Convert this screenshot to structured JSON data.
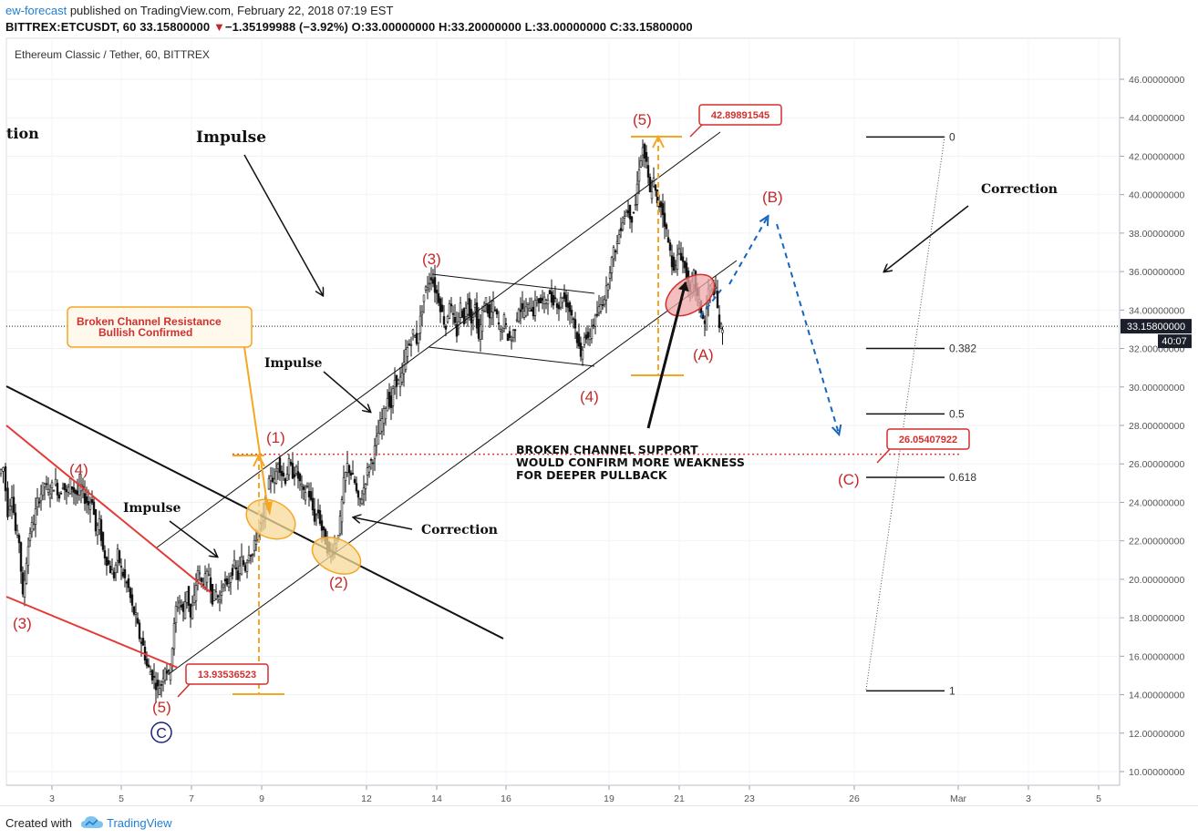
{
  "header": {
    "author": "ew-forecast",
    "published": " published on TradingView.com, February 22, 2018 07:19 EST",
    "symbol_line": "BITTREX:ETCUSDT, 60",
    "last": "33.15800000",
    "change_icon": "down-triangle-icon",
    "change": "−1.35199988 (−3.92%)",
    "ohlc": "O:33.00000000 H:33.20000000 L:33.00000000 C:33.15800000"
  },
  "chart_title": "Ethereum Classic / Tether, 60, BITTREX",
  "price_badge": "33.15800000",
  "countdown": "40:07",
  "footer": {
    "created": "Created with",
    "brand": "TradingView",
    "brand_icon": "tradingview-cloud-icon"
  },
  "colors": {
    "red": "#d32f2f",
    "orange": "#f5a623",
    "blue": "#1565c0",
    "grid": "#eef1f5"
  },
  "chart_data": {
    "type": "candlestick",
    "y_axis": {
      "min": 10,
      "max": 46,
      "step": 2,
      "decimals": 8
    },
    "x_ticks": [
      "3",
      "5",
      "7",
      "9",
      "12",
      "14",
      "16",
      "19",
      "21",
      "23",
      "26",
      "Mar",
      "3",
      "5"
    ],
    "path_points": [
      [
        0,
        25.5
      ],
      [
        5,
        25.8
      ],
      [
        10,
        23.5
      ],
      [
        14,
        24.5
      ],
      [
        18,
        22.5
      ],
      [
        22,
        22
      ],
      [
        26,
        19
      ],
      [
        30,
        21
      ],
      [
        34,
        22.5
      ],
      [
        38,
        23
      ],
      [
        42,
        24
      ],
      [
        46,
        24.5
      ],
      [
        50,
        25
      ],
      [
        54,
        24.5
      ],
      [
        58,
        24.8
      ],
      [
        62,
        25
      ],
      [
        66,
        24.3
      ],
      [
        70,
        25
      ],
      [
        74,
        24.4
      ],
      [
        78,
        25
      ],
      [
        82,
        24.6
      ],
      [
        86,
        24.4
      ],
      [
        90,
        24.8
      ],
      [
        94,
        24.2
      ],
      [
        98,
        23.9
      ],
      [
        102,
        24.2
      ],
      [
        106,
        22.5
      ],
      [
        110,
        22.9
      ],
      [
        114,
        21.5
      ],
      [
        118,
        21
      ],
      [
        122,
        20.5
      ],
      [
        126,
        20.2
      ],
      [
        130,
        21.3
      ],
      [
        134,
        20.5
      ],
      [
        138,
        20
      ],
      [
        142,
        19.5
      ],
      [
        146,
        18.5
      ],
      [
        150,
        18
      ],
      [
        154,
        17
      ],
      [
        158,
        16.5
      ],
      [
        162,
        15.5
      ],
      [
        166,
        15.2
      ],
      [
        170,
        14.8
      ],
      [
        174,
        14.3
      ],
      [
        178,
        14.6
      ],
      [
        182,
        15.5
      ],
      [
        186,
        15
      ],
      [
        190,
        16.5
      ],
      [
        194,
        18.5
      ],
      [
        198,
        18.9
      ],
      [
        202,
        18.2
      ],
      [
        206,
        19.5
      ],
      [
        210,
        18
      ],
      [
        214,
        19
      ],
      [
        218,
        20.5
      ],
      [
        222,
        19.8
      ],
      [
        226,
        20
      ],
      [
        230,
        20.3
      ],
      [
        234,
        19
      ],
      [
        238,
        19.3
      ],
      [
        242,
        18.9
      ],
      [
        246,
        20
      ],
      [
        250,
        19.5
      ],
      [
        254,
        20.3
      ],
      [
        258,
        20.7
      ],
      [
        262,
        20.1
      ],
      [
        266,
        21
      ],
      [
        270,
        20.6
      ],
      [
        274,
        21.5
      ],
      [
        278,
        21.3
      ],
      [
        282,
        22.2
      ],
      [
        286,
        22.8
      ],
      [
        290,
        23.2
      ],
      [
        294,
        24.4
      ],
      [
        298,
        25.5
      ],
      [
        302,
        25
      ],
      [
        306,
        26.2
      ],
      [
        310,
        25.5
      ],
      [
        314,
        25.2
      ],
      [
        318,
        26
      ],
      [
        322,
        25.5
      ],
      [
        326,
        25.6
      ],
      [
        330,
        25
      ],
      [
        334,
        24.4
      ],
      [
        338,
        24.8
      ],
      [
        342,
        24
      ],
      [
        346,
        23.2
      ],
      [
        350,
        23.5
      ],
      [
        354,
        22.6
      ],
      [
        358,
        22
      ],
      [
        362,
        21.3
      ],
      [
        366,
        21.6
      ],
      [
        370,
        22
      ],
      [
        374,
        23
      ],
      [
        378,
        25
      ],
      [
        382,
        25.9
      ],
      [
        386,
        25.5
      ],
      [
        390,
        25
      ],
      [
        394,
        24
      ],
      [
        398,
        24.3
      ],
      [
        402,
        25.2
      ],
      [
        406,
        26
      ],
      [
        410,
        26.3
      ],
      [
        414,
        27.2
      ],
      [
        418,
        28
      ],
      [
        422,
        28.6
      ],
      [
        426,
        29.5
      ],
      [
        430,
        29
      ],
      [
        434,
        30.4
      ],
      [
        438,
        30.2
      ],
      [
        442,
        30.5
      ],
      [
        446,
        31.8
      ],
      [
        450,
        32.2
      ],
      [
        454,
        32.8
      ],
      [
        458,
        32.4
      ],
      [
        462,
        33.5
      ],
      [
        466,
        34.8
      ],
      [
        470,
        35.3
      ],
      [
        474,
        35.8
      ],
      [
        478,
        35.1
      ],
      [
        482,
        34.6
      ],
      [
        486,
        33.8
      ],
      [
        490,
        33.1
      ],
      [
        494,
        34.5
      ],
      [
        498,
        33.5
      ],
      [
        502,
        32.8
      ],
      [
        506,
        34.2
      ],
      [
        510,
        33.5
      ],
      [
        514,
        34.5
      ],
      [
        518,
        33.5
      ],
      [
        522,
        34.2
      ],
      [
        526,
        32.5
      ],
      [
        530,
        33.8
      ],
      [
        534,
        34.5
      ],
      [
        538,
        33.5
      ],
      [
        542,
        34.2
      ],
      [
        546,
        33.6
      ],
      [
        550,
        32.8
      ],
      [
        554,
        33.5
      ],
      [
        558,
        32.6
      ],
      [
        562,
        32.5
      ],
      [
        566,
        33.2
      ],
      [
        570,
        34.2
      ],
      [
        574,
        33.9
      ],
      [
        578,
        34
      ],
      [
        582,
        34.3
      ],
      [
        586,
        33.9
      ],
      [
        590,
        34.6
      ],
      [
        594,
        34.4
      ],
      [
        598,
        34.4
      ],
      [
        602,
        34.8
      ],
      [
        606,
        34.5
      ],
      [
        610,
        34.6
      ],
      [
        614,
        34.2
      ],
      [
        618,
        34.8
      ],
      [
        622,
        34.4
      ],
      [
        626,
        34
      ],
      [
        630,
        33.6
      ],
      [
        634,
        32.5
      ],
      [
        638,
        31.5
      ],
      [
        642,
        32.8
      ],
      [
        646,
        32.3
      ],
      [
        650,
        33.2
      ],
      [
        654,
        33.5
      ],
      [
        658,
        34
      ],
      [
        662,
        34.5
      ],
      [
        666,
        35
      ],
      [
        670,
        36.2
      ],
      [
        674,
        37
      ],
      [
        678,
        37.5
      ],
      [
        682,
        38.4
      ],
      [
        686,
        39
      ],
      [
        690,
        39.2
      ],
      [
        694,
        38.8
      ],
      [
        698,
        39.5
      ],
      [
        702,
        41.5
      ],
      [
        706,
        42.4
      ],
      [
        710,
        41.5
      ],
      [
        714,
        40
      ],
      [
        718,
        40.7
      ],
      [
        722,
        39.4
      ],
      [
        726,
        39.5
      ],
      [
        730,
        38.6
      ],
      [
        734,
        37.5
      ],
      [
        738,
        36.5
      ],
      [
        742,
        36.2
      ],
      [
        746,
        37.2
      ],
      [
        750,
        36.5
      ],
      [
        754,
        35.8
      ],
      [
        758,
        34.7
      ],
      [
        762,
        35.8
      ],
      [
        766,
        34.6
      ],
      [
        770,
        34
      ],
      [
        774,
        33.2
      ],
      [
        778,
        35
      ],
      [
        782,
        35.2
      ],
      [
        786,
        34.9
      ],
      [
        790,
        33.2
      ],
      [
        793,
        32.8
      ]
    ],
    "channels": [
      {
        "style": "thin",
        "p1": [
          172,
          601
        ],
        "p2": [
          790,
          145
        ]
      },
      {
        "style": "thin",
        "p1": [
          185,
          740
        ],
        "p2": [
          808,
          286
        ]
      }
    ],
    "annotations_waves": [
      {
        "label": "(3)",
        "color": "red"
      },
      {
        "label": "(4)",
        "color": "red"
      },
      {
        "label": "(5)",
        "color": "red"
      },
      {
        "label": "C",
        "color": "blue",
        "circled": true
      },
      {
        "label": "(1)",
        "color": "red"
      },
      {
        "label": "(2)",
        "color": "red"
      },
      {
        "label": "(3)",
        "color": "red"
      },
      {
        "label": "(4)",
        "color": "red"
      },
      {
        "label": "(5)",
        "color": "red"
      },
      {
        "label": "(A)",
        "color": "red"
      },
      {
        "label": "(B)",
        "color": "red"
      },
      {
        "label": "(C)",
        "color": "red"
      }
    ],
    "text_labels": [
      {
        "text": "tion"
      },
      {
        "text": "Impulse"
      },
      {
        "text": "Impulse"
      },
      {
        "text": "Impulse"
      },
      {
        "text": "Correction"
      },
      {
        "text": "Correction"
      },
      {
        "text": "BROKEN CHANNEL SUPPORT"
      },
      {
        "text": "WOULD CONFIRM MORE WEAKNESS"
      },
      {
        "text": "FOR DEEPER PULLBACK"
      }
    ],
    "callout": {
      "line1": "Broken Channel Resistance",
      "line2": "Bullish Confirmed"
    },
    "price_labels": [
      "42.89891545",
      "13.93536523",
      "26.05407922"
    ],
    "fib_levels": [
      {
        "ratio": "0",
        "price": 43.0
      },
      {
        "ratio": "0.382",
        "price": 32.0
      },
      {
        "ratio": "0.5",
        "price": 28.6
      },
      {
        "ratio": "0.618",
        "price": 25.3
      },
      {
        "ratio": "1",
        "price": 14.2
      }
    ],
    "current_price": 33.158,
    "resistance_price": 26.5
  }
}
